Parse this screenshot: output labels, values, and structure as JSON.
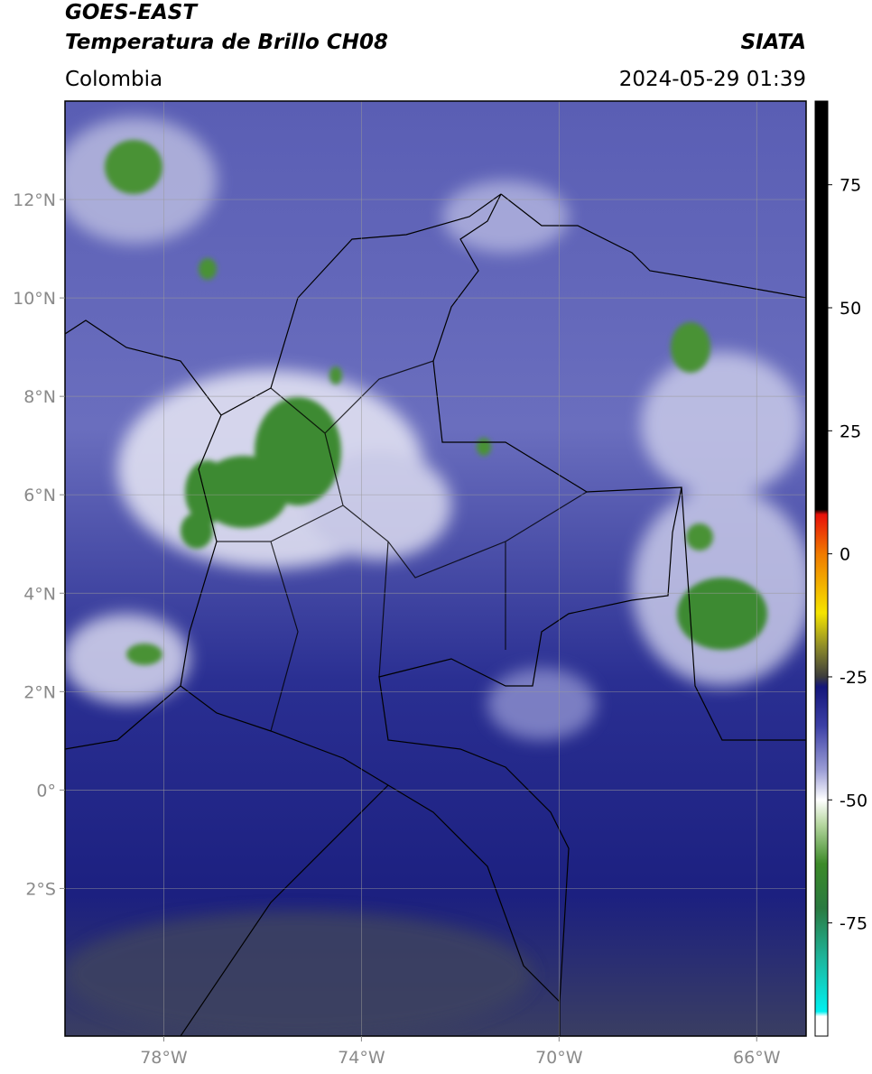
{
  "header": {
    "title_line1": "GOES-EAST",
    "title_line2": "Temperatura de Brillo CH08",
    "source": "SIATA",
    "region": "Colombia",
    "timestamp": "2024-05-29 01:39"
  },
  "map": {
    "xlim": [
      -80,
      -65
    ],
    "ylim": [
      -5,
      14
    ],
    "xticks": [
      {
        "value": -78,
        "label": "78°W"
      },
      {
        "value": -74,
        "label": "74°W"
      },
      {
        "value": -70,
        "label": "70°W"
      },
      {
        "value": -66,
        "label": "66°W"
      }
    ],
    "yticks": [
      {
        "value": 12,
        "label": "12°N"
      },
      {
        "value": 10,
        "label": "10°N"
      },
      {
        "value": 8,
        "label": "8°N"
      },
      {
        "value": 6,
        "label": "6°N"
      },
      {
        "value": 4,
        "label": "4°N"
      },
      {
        "value": 2,
        "label": "2°N"
      },
      {
        "value": 0,
        "label": "0°"
      },
      {
        "value": -2,
        "label": "2°S"
      }
    ],
    "grid": true
  },
  "colorbar": {
    "lim": [
      -98,
      92
    ],
    "ticks": [
      75,
      50,
      25,
      0,
      -25,
      -50,
      -75
    ],
    "colormap": [
      {
        "value": 92,
        "color": "#000000"
      },
      {
        "value": 9,
        "color": "#000000"
      },
      {
        "value": 8,
        "color": "#e8100a"
      },
      {
        "value": 0,
        "color": "#f07a00"
      },
      {
        "value": -12,
        "color": "#f5e400"
      },
      {
        "value": -19,
        "color": "#8c8a2a"
      },
      {
        "value": -25,
        "color": "#3c3c3c"
      },
      {
        "value": -27,
        "color": "#14167a"
      },
      {
        "value": -35,
        "color": "#3c40a6"
      },
      {
        "value": -44,
        "color": "#9c9ed6"
      },
      {
        "value": -50,
        "color": "#ffffff"
      },
      {
        "value": -55,
        "color": "#b6d7a0"
      },
      {
        "value": -63,
        "color": "#3c8a28"
      },
      {
        "value": -72,
        "color": "#2a7a40"
      },
      {
        "value": -82,
        "color": "#1fb49a"
      },
      {
        "value": -93,
        "color": "#00f0f0"
      },
      {
        "value": -94,
        "color": "#ffffff"
      },
      {
        "value": -98,
        "color": "#ffffff"
      }
    ]
  }
}
